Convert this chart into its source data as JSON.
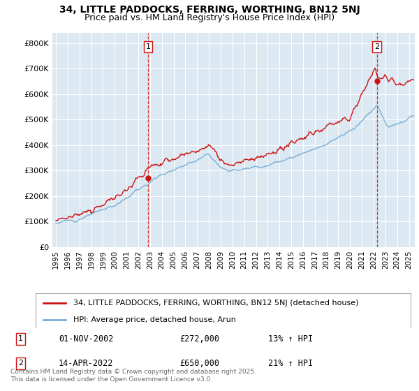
{
  "title_line1": "34, LITTLE PADDOCKS, FERRING, WORTHING, BN12 5NJ",
  "title_line2": "Price paid vs. HM Land Registry's House Price Index (HPI)",
  "ylabel_ticks": [
    "£0",
    "£100K",
    "£200K",
    "£300K",
    "£400K",
    "£500K",
    "£600K",
    "£700K",
    "£800K"
  ],
  "ytick_values": [
    0,
    100000,
    200000,
    300000,
    400000,
    500000,
    600000,
    700000,
    800000
  ],
  "ylim": [
    0,
    840000
  ],
  "xlim_start": 1994.7,
  "xlim_end": 2025.5,
  "hpi_color": "#7aadd4",
  "price_color": "#cc1111",
  "background_color": "#dce8f2",
  "sale1_x": 2002.83,
  "sale1_y": 272000,
  "sale1_label": "1",
  "sale2_x": 2022.28,
  "sale2_y": 650000,
  "sale2_label": "2",
  "legend_line1": "34, LITTLE PADDOCKS, FERRING, WORTHING, BN12 5NJ (detached house)",
  "legend_line2": "HPI: Average price, detached house, Arun",
  "annotation1_date": "01-NOV-2002",
  "annotation1_price": "£272,000",
  "annotation1_hpi": "13% ↑ HPI",
  "annotation2_date": "14-APR-2022",
  "annotation2_price": "£650,000",
  "annotation2_hpi": "21% ↑ HPI",
  "footer": "Contains HM Land Registry data © Crown copyright and database right 2025.\nThis data is licensed under the Open Government Licence v3.0.",
  "xtick_years": [
    1995,
    1996,
    1997,
    1998,
    1999,
    2000,
    2001,
    2002,
    2003,
    2004,
    2005,
    2006,
    2007,
    2008,
    2009,
    2010,
    2011,
    2012,
    2013,
    2014,
    2015,
    2016,
    2017,
    2018,
    2019,
    2020,
    2021,
    2022,
    2023,
    2024,
    2025
  ]
}
